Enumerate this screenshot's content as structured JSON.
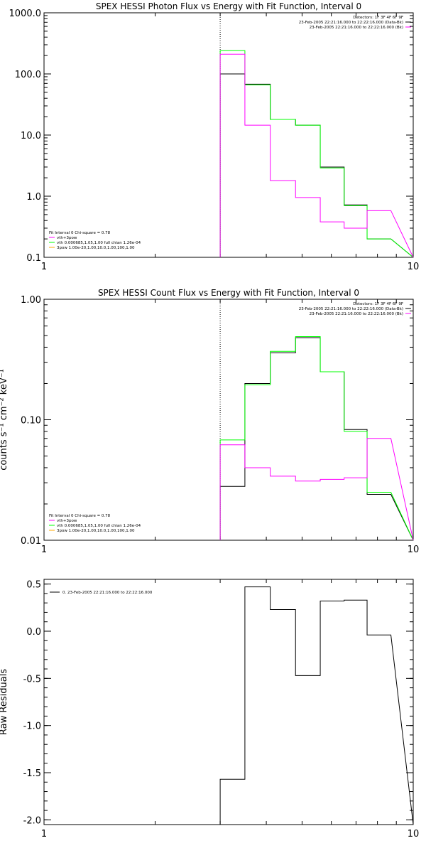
{
  "chart_data": [
    {
      "type": "line",
      "title": "SPEX HESSI Photon Flux vs Energy with Fit Function, Interval 0",
      "ylabel": "",
      "xscale": "log",
      "yscale": "log",
      "xlim": [
        1,
        10
      ],
      "ylim": [
        0.1,
        1000
      ],
      "xticks": [
        {
          "v": 1,
          "label": "1"
        },
        {
          "v": 10,
          "label": "10"
        }
      ],
      "yticks": [
        {
          "v": 0.1,
          "label": "0.1"
        },
        {
          "v": 1,
          "label": "1.0"
        },
        {
          "v": 10,
          "label": "10.0"
        },
        {
          "v": 100,
          "label": "100.0"
        },
        {
          "v": 1000,
          "label": "1000.0"
        }
      ],
      "vline": 3,
      "info_lines": [
        "Detectors: 1F 3F 4F 6F 9F",
        "23-Feb-2005 22:21:16.000 to 22:22:16.000 (Data-Bk)",
        "23-Feb-2005 22:21:16.000 to 22:22:16.000 (Bk)"
      ],
      "info_colors": [
        "",
        "#000000",
        "#ff00ff"
      ],
      "fit_lines": [
        "Fit Interval 0   Chi-square = 0.78",
        "vth+3pow",
        "vth 0.000685,1.05,1.00  full chian 1.26e-04",
        "3pow 1.00e-20,1.00,10.0,1.00,100,1.00"
      ],
      "fit_colors": [
        "",
        "#ff00ff",
        "#00ff00",
        "#ffaa00"
      ],
      "edges": [
        3,
        3.5,
        4.1,
        4.8,
        5.6,
        6.5,
        7.5,
        8.7,
        10
      ],
      "series": [
        {
          "name": "Data-Bk",
          "color": "#000000",
          "values": [
            100,
            68,
            18,
            14.5,
            3.0,
            0.72,
            0.2
          ]
        },
        {
          "name": "Fit",
          "color": "#00ff00",
          "values": [
            240,
            66,
            18,
            14.5,
            2.9,
            0.7,
            0.2
          ]
        },
        {
          "name": "Bk",
          "color": "#ff00ff",
          "values": [
            210,
            14.5,
            1.8,
            0.95,
            0.38,
            0.3,
            0.58
          ]
        }
      ]
    },
    {
      "type": "line",
      "title": "SPEX HESSI Count Flux vs Energy with Fit Function, Interval 0",
      "ylabel": "counts s⁻¹ cm⁻² keV⁻¹",
      "xscale": "log",
      "yscale": "log",
      "xlim": [
        1,
        10
      ],
      "ylim": [
        0.01,
        1
      ],
      "xticks": [
        {
          "v": 1,
          "label": "1"
        },
        {
          "v": 10,
          "label": "10"
        }
      ],
      "yticks": [
        {
          "v": 0.01,
          "label": "0.01"
        },
        {
          "v": 0.1,
          "label": "0.10"
        },
        {
          "v": 1,
          "label": "1.00"
        }
      ],
      "vline": 3,
      "info_lines": [
        "Detectors: 1F 3F 4F 6F 9F",
        "23-Feb-2005 22:21:16.000 to 22:22:16.000 (Data-Bk)",
        "23-Feb-2005 22:21:16.000 to 22:22:16.000 (Bk)"
      ],
      "info_colors": [
        "",
        "#000000",
        "#ff00ff"
      ],
      "fit_lines": [
        "Fit Interval 0   Chi-square = 0.78",
        "vth+3pow",
        "vth 0.000685,1.05,1.00  full chian 1.26e-04",
        "3pow 1.00e-20,1.00,10.0,1.00,100,1.00"
      ],
      "fit_colors": [
        "",
        "#ff00ff",
        "#00ff00",
        "#ffaa00"
      ],
      "edges": [
        3,
        3.5,
        4.1,
        4.8,
        5.6,
        6.5,
        7.5,
        8.7,
        10
      ],
      "series": [
        {
          "name": "Data-Bk",
          "color": "#000000",
          "values": [
            0.028,
            0.2,
            0.36,
            0.48,
            0.25,
            0.083,
            0.024
          ]
        },
        {
          "name": "Fit",
          "color": "#00ff00",
          "values": [
            0.068,
            0.195,
            0.37,
            0.49,
            0.25,
            0.08,
            0.025
          ]
        },
        {
          "name": "Bk",
          "color": "#ff00ff",
          "values": [
            0.062,
            0.04,
            0.034,
            0.031,
            0.032,
            0.033,
            0.07
          ]
        }
      ]
    },
    {
      "type": "line",
      "title": "",
      "ylabel": "Raw Residuals",
      "xscale": "log",
      "yscale": "linear",
      "xlim": [
        1,
        10
      ],
      "ylim": [
        -2.05,
        0.55
      ],
      "xticks": [
        {
          "v": 1,
          "label": "1"
        },
        {
          "v": 10,
          "label": "10"
        }
      ],
      "yticks": [
        {
          "v": -2.0,
          "label": "-2.0"
        },
        {
          "v": -1.5,
          "label": "-1.5"
        },
        {
          "v": -1.0,
          "label": "-1.0"
        },
        {
          "v": -0.5,
          "label": "-0.5"
        },
        {
          "v": 0.0,
          "label": "0.0"
        },
        {
          "v": 0.5,
          "label": "0.5"
        }
      ],
      "legend_text": "0. 23-Feb-2005 22:21:16.000 to 22:22:16.000",
      "edges": [
        3,
        3.5,
        4.1,
        4.8,
        5.6,
        6.5,
        7.5,
        8.7,
        10
      ],
      "series": [
        {
          "name": "",
          "color": "#000000",
          "values": [
            -1.57,
            0.47,
            0.23,
            -0.47,
            0.32,
            0.33,
            -0.04
          ]
        }
      ]
    }
  ]
}
